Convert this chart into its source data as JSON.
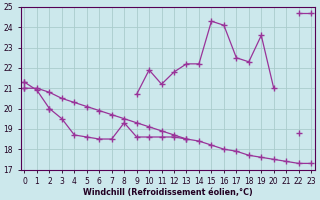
{
  "xlabel": "Windchill (Refroidissement éolien,°C)",
  "bg_color": "#cce8ec",
  "grid_color": "#aacccc",
  "line_color": "#993399",
  "ylim": [
    17,
    25
  ],
  "xlim_min": -0.3,
  "xlim_max": 23.3,
  "yticks": [
    17,
    18,
    19,
    20,
    21,
    22,
    23,
    24,
    25
  ],
  "xticks": [
    0,
    1,
    2,
    3,
    4,
    5,
    6,
    7,
    8,
    9,
    10,
    11,
    12,
    13,
    14,
    15,
    16,
    17,
    18,
    19,
    20,
    21,
    22,
    23
  ],
  "x": [
    0,
    1,
    2,
    3,
    4,
    5,
    6,
    7,
    8,
    9,
    10,
    11,
    12,
    13,
    14,
    15,
    16,
    17,
    18,
    19,
    20,
    21,
    22,
    23
  ],
  "lineA": [
    21.3,
    20.9,
    20.0,
    null,
    null,
    null,
    null,
    null,
    null,
    20.7,
    21.9,
    21.2,
    21.8,
    22.2,
    22.2,
    24.3,
    24.1,
    22.5,
    22.3,
    23.6,
    21.0,
    null,
    18.8,
    null
  ],
  "lineB": [
    21.0,
    null,
    null,
    null,
    null,
    null,
    null,
    null,
    null,
    null,
    null,
    null,
    null,
    null,
    null,
    null,
    null,
    null,
    null,
    null,
    null,
    null,
    24.7,
    24.7
  ],
  "lineC": [
    21.3,
    null,
    20.0,
    19.5,
    18.7,
    18.6,
    18.5,
    18.5,
    19.3,
    18.6,
    18.6,
    18.6,
    18.6,
    18.5,
    null,
    null,
    null,
    null,
    null,
    null,
    null,
    null,
    null,
    null
  ],
  "lineD": [
    21.0,
    21.0,
    20.8,
    20.5,
    20.3,
    20.1,
    19.9,
    19.7,
    19.5,
    19.3,
    19.1,
    18.9,
    18.7,
    18.5,
    18.4,
    18.2,
    18.0,
    17.9,
    17.7,
    17.6,
    17.5,
    17.4,
    17.3,
    17.3
  ]
}
